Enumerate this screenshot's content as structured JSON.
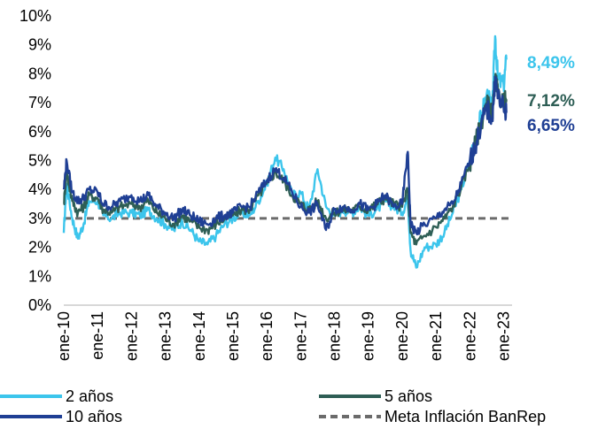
{
  "chart_data": {
    "type": "line",
    "title": "",
    "xlabel": "",
    "ylabel": "",
    "ylim": [
      0,
      10
    ],
    "y_ticks": [
      "0%",
      "1%",
      "2%",
      "3%",
      "4%",
      "5%",
      "6%",
      "7%",
      "8%",
      "9%",
      "10%"
    ],
    "x_ticks": [
      "ene-10",
      "ene-11",
      "ene-12",
      "ene-13",
      "ene-14",
      "ene-15",
      "ene-16",
      "ene-17",
      "ene-18",
      "ene-19",
      "ene-20",
      "ene-21",
      "ene-22",
      "ene-23"
    ],
    "grid": false,
    "legend_position": "bottom",
    "end_labels": [
      {
        "series": "2 años",
        "text": "8,49%",
        "color": "#3CC5EC"
      },
      {
        "series": "5 años",
        "text": "7,12%",
        "color": "#2E5E55"
      },
      {
        "series": "10 años",
        "text": "6,65%",
        "color": "#1F3F94"
      }
    ],
    "series": [
      {
        "name": "2 años",
        "color": "#3CC5EC",
        "x": [
          "2010-01",
          "2010-02",
          "2010-04",
          "2010-06",
          "2010-08",
          "2010-10",
          "2011-01",
          "2011-03",
          "2011-06",
          "2011-09",
          "2012-01",
          "2012-04",
          "2012-07",
          "2012-10",
          "2013-01",
          "2013-04",
          "2013-07",
          "2013-10",
          "2014-01",
          "2014-04",
          "2014-07",
          "2014-10",
          "2015-01",
          "2015-04",
          "2015-07",
          "2015-10",
          "2016-01",
          "2016-04",
          "2016-07",
          "2016-10",
          "2017-01",
          "2017-04",
          "2017-07",
          "2017-10",
          "2018-01",
          "2018-04",
          "2018-07",
          "2018-10",
          "2019-01",
          "2019-04",
          "2019-07",
          "2019-10",
          "2020-01",
          "2020-03",
          "2020-04",
          "2020-06",
          "2020-09",
          "2021-01",
          "2021-04",
          "2021-07",
          "2021-10",
          "2022-01",
          "2022-03",
          "2022-05",
          "2022-07",
          "2022-09",
          "2022-10",
          "2022-11",
          "2023-01",
          "2023-02"
        ],
        "values": [
          2.5,
          4.2,
          3.0,
          2.3,
          2.8,
          3.6,
          3.6,
          3.1,
          3.0,
          3.2,
          3.2,
          3.1,
          3.3,
          3.0,
          2.8,
          2.6,
          2.9,
          2.6,
          2.2,
          2.1,
          2.4,
          2.8,
          3.0,
          3.2,
          3.1,
          3.6,
          4.2,
          5.1,
          4.7,
          3.8,
          3.9,
          3.3,
          4.7,
          3.4,
          3.1,
          3.3,
          3.2,
          3.4,
          3.1,
          3.3,
          3.6,
          3.4,
          3.2,
          3.7,
          1.9,
          1.3,
          2.0,
          2.1,
          2.5,
          3.2,
          4.0,
          5.0,
          5.8,
          6.5,
          7.3,
          6.8,
          9.3,
          7.8,
          7.6,
          8.49
        ]
      },
      {
        "name": "5 años",
        "color": "#2E5E55",
        "x": [
          "2010-01",
          "2010-02",
          "2010-04",
          "2010-06",
          "2010-08",
          "2010-10",
          "2011-01",
          "2011-03",
          "2011-06",
          "2011-09",
          "2012-01",
          "2012-04",
          "2012-07",
          "2012-10",
          "2013-01",
          "2013-04",
          "2013-07",
          "2013-10",
          "2014-01",
          "2014-04",
          "2014-07",
          "2014-10",
          "2015-01",
          "2015-04",
          "2015-07",
          "2015-10",
          "2016-01",
          "2016-04",
          "2016-07",
          "2016-10",
          "2017-01",
          "2017-04",
          "2017-07",
          "2017-10",
          "2018-01",
          "2018-04",
          "2018-07",
          "2018-10",
          "2019-01",
          "2019-04",
          "2019-07",
          "2019-10",
          "2020-01",
          "2020-03",
          "2020-04",
          "2020-06",
          "2020-09",
          "2021-01",
          "2021-04",
          "2021-07",
          "2021-10",
          "2022-01",
          "2022-03",
          "2022-05",
          "2022-07",
          "2022-09",
          "2022-10",
          "2022-11",
          "2023-01",
          "2023-02"
        ],
        "values": [
          3.5,
          4.6,
          3.6,
          3.2,
          3.4,
          3.8,
          3.7,
          3.3,
          3.2,
          3.4,
          3.5,
          3.4,
          3.6,
          3.2,
          3.0,
          2.8,
          3.1,
          2.9,
          2.7,
          2.6,
          2.8,
          3.0,
          3.1,
          3.3,
          3.3,
          3.8,
          4.2,
          4.6,
          4.3,
          3.8,
          3.5,
          3.3,
          3.6,
          3.0,
          3.2,
          3.3,
          3.3,
          3.4,
          3.3,
          3.5,
          3.7,
          3.5,
          3.4,
          4.0,
          2.5,
          2.1,
          2.4,
          2.7,
          3.0,
          3.4,
          4.1,
          4.9,
          5.6,
          6.3,
          7.0,
          6.6,
          7.8,
          7.3,
          7.0,
          7.12
        ]
      },
      {
        "name": "10 años",
        "color": "#1F3F94",
        "x": [
          "2010-01",
          "2010-02",
          "2010-04",
          "2010-06",
          "2010-08",
          "2010-10",
          "2011-01",
          "2011-03",
          "2011-06",
          "2011-09",
          "2012-01",
          "2012-04",
          "2012-07",
          "2012-10",
          "2013-01",
          "2013-04",
          "2013-07",
          "2013-10",
          "2014-01",
          "2014-04",
          "2014-07",
          "2014-10",
          "2015-01",
          "2015-04",
          "2015-07",
          "2015-10",
          "2016-01",
          "2016-04",
          "2016-07",
          "2016-10",
          "2017-01",
          "2017-04",
          "2017-07",
          "2017-10",
          "2018-01",
          "2018-04",
          "2018-07",
          "2018-10",
          "2019-01",
          "2019-04",
          "2019-07",
          "2019-10",
          "2020-01",
          "2020-03",
          "2020-04",
          "2020-06",
          "2020-09",
          "2021-01",
          "2021-04",
          "2021-07",
          "2021-10",
          "2022-01",
          "2022-03",
          "2022-05",
          "2022-07",
          "2022-09",
          "2022-10",
          "2022-11",
          "2023-01",
          "2023-02"
        ],
        "values": [
          4.0,
          5.0,
          3.9,
          3.6,
          3.7,
          4.0,
          3.9,
          3.5,
          3.4,
          3.6,
          3.8,
          3.6,
          3.8,
          3.4,
          3.2,
          3.0,
          3.3,
          3.1,
          2.9,
          2.8,
          3.0,
          3.1,
          3.2,
          3.4,
          3.4,
          3.9,
          4.3,
          4.7,
          4.4,
          3.9,
          3.4,
          3.2,
          3.5,
          2.6,
          3.3,
          3.4,
          3.3,
          3.5,
          3.3,
          3.5,
          3.8,
          3.4,
          3.5,
          5.3,
          2.8,
          2.5,
          2.8,
          3.0,
          3.3,
          3.5,
          4.2,
          5.0,
          5.5,
          6.2,
          6.8,
          6.4,
          7.9,
          7.2,
          6.8,
          6.65
        ]
      },
      {
        "name": "Meta Inflación BanRep",
        "color": "#6B6B6B",
        "dashed": true,
        "x": [
          "2010-01",
          "2023-03"
        ],
        "values": [
          3.0,
          3.0
        ]
      }
    ]
  }
}
